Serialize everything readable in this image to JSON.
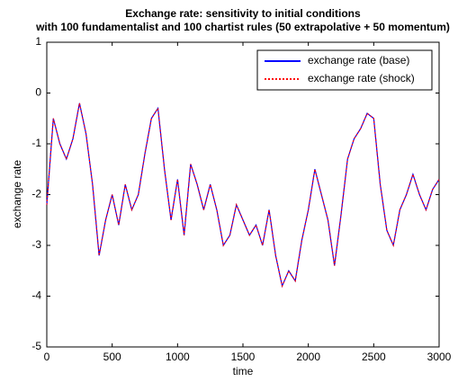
{
  "chart_data": {
    "type": "line",
    "title": "Exchange rate: sensitivity to initial conditions",
    "subtitle": "with 100 fundamentalist and 100 chartist rules (50 extrapolative + 50 momentum)",
    "xlabel": "time",
    "ylabel": "exchange rate",
    "xlim": [
      0,
      3000
    ],
    "ylim": [
      -5,
      1
    ],
    "xticks": [
      0,
      500,
      1000,
      1500,
      2000,
      2500,
      3000
    ],
    "yticks": [
      -5,
      -4,
      -3,
      -2,
      -1,
      0,
      1
    ],
    "legend": "upper right",
    "x": [
      0,
      50,
      100,
      150,
      200,
      250,
      300,
      350,
      400,
      450,
      500,
      550,
      600,
      650,
      700,
      750,
      800,
      850,
      900,
      950,
      1000,
      1050,
      1100,
      1150,
      1200,
      1250,
      1300,
      1350,
      1400,
      1450,
      1500,
      1550,
      1600,
      1650,
      1700,
      1750,
      1800,
      1850,
      1900,
      1950,
      2000,
      2050,
      2100,
      2150,
      2200,
      2250,
      2300,
      2350,
      2400,
      2450,
      2500,
      2550,
      2600,
      2650,
      2700,
      2750,
      2800,
      2850,
      2900,
      2950,
      3000
    ],
    "series": [
      {
        "name": "exchange rate (base)",
        "color": "#0000ff",
        "dash": false,
        "values": [
          -2.2,
          -0.5,
          -1.0,
          -1.3,
          -0.9,
          -0.2,
          -0.8,
          -1.8,
          -3.2,
          -2.5,
          -2.0,
          -2.6,
          -1.8,
          -2.3,
          -2.0,
          -1.2,
          -0.5,
          -0.3,
          -1.5,
          -2.5,
          -1.7,
          -2.8,
          -1.4,
          -1.8,
          -2.3,
          -1.8,
          -2.3,
          -3.0,
          -2.8,
          -2.2,
          -2.5,
          -2.8,
          -2.6,
          -3.0,
          -2.3,
          -3.2,
          -3.8,
          -3.5,
          -3.7,
          -2.9,
          -2.3,
          -1.5,
          -2.0,
          -2.5,
          -3.4,
          -2.4,
          -1.3,
          -0.9,
          -0.7,
          -0.4,
          -0.5,
          -1.8,
          -2.7,
          -3.0,
          -2.3,
          -2.0,
          -1.6,
          -2.0,
          -2.3,
          -1.9,
          -1.7
        ]
      },
      {
        "name": "exchange rate (shock)",
        "color": "#ff0000",
        "dash": true,
        "values": [
          -2.2,
          -0.5,
          -1.0,
          -1.3,
          -0.9,
          -0.2,
          -0.8,
          -1.8,
          -3.2,
          -2.5,
          -2.0,
          -2.6,
          -1.8,
          -2.3,
          -2.0,
          -1.2,
          -0.5,
          -0.3,
          -1.5,
          -2.5,
          -1.7,
          -2.8,
          -1.4,
          -1.8,
          -2.3,
          -1.8,
          -2.3,
          -3.0,
          -2.8,
          -2.2,
          -2.5,
          -2.8,
          -2.6,
          -3.0,
          -2.3,
          -3.2,
          -3.8,
          -3.5,
          -3.7,
          -2.9,
          -2.3,
          -1.5,
          -2.0,
          -2.5,
          -3.4,
          -2.4,
          -1.3,
          -0.9,
          -0.7,
          -0.4,
          -0.5,
          -1.8,
          -2.7,
          -3.0,
          -2.3,
          -2.0,
          -1.6,
          -2.0,
          -2.3,
          -1.9,
          -1.7
        ]
      }
    ]
  }
}
